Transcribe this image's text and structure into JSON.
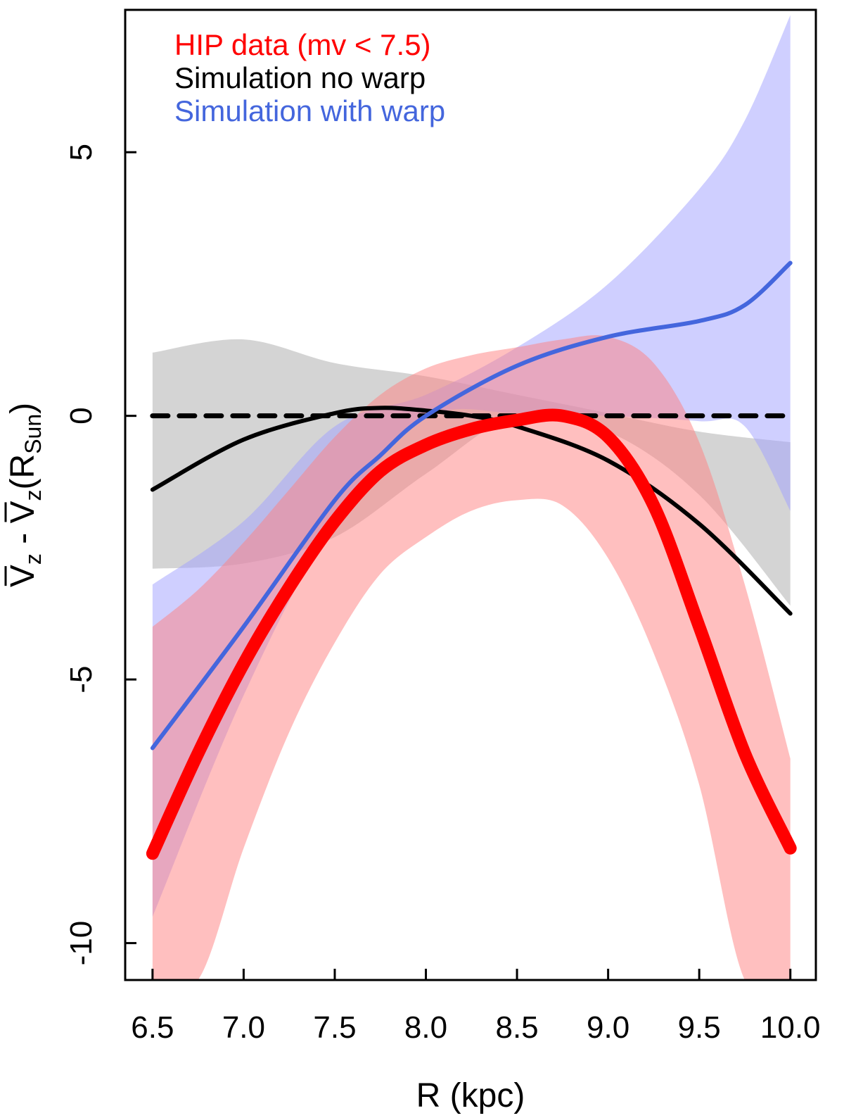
{
  "chart_data": {
    "type": "line",
    "xlabel": "R (kpc)",
    "ylabel": {
      "v1": "V",
      "sub1": "z",
      "minus": " - ",
      "v2": "V",
      "sub2": "z",
      "open": "(R",
      "sub3": "Sun",
      "close": ")"
    },
    "xlim": [
      6.35,
      10.14
    ],
    "ylim": [
      -10.7,
      7.7
    ],
    "x_ticks": [
      {
        "value": 6.5,
        "label": "6.5"
      },
      {
        "value": 7.0,
        "label": "7.0"
      },
      {
        "value": 7.5,
        "label": "7.5"
      },
      {
        "value": 8.0,
        "label": "8.0"
      },
      {
        "value": 8.5,
        "label": "8.5"
      },
      {
        "value": 9.0,
        "label": "9.0"
      },
      {
        "value": 9.5,
        "label": "9.5"
      },
      {
        "value": 10.0,
        "label": "10.0"
      }
    ],
    "y_ticks": [
      {
        "value": 5,
        "label": "5"
      },
      {
        "value": 0,
        "label": "0"
      },
      {
        "value": -5,
        "label": "-5"
      },
      {
        "value": -10,
        "label": "-10"
      }
    ],
    "legend": [
      {
        "label": "HIP data (mv < 7.5)",
        "color": "#ff0000"
      },
      {
        "label": "Simulation no warp",
        "color": "#000000"
      },
      {
        "label": "Simulation with warp",
        "color": "#4466dd"
      }
    ],
    "reference_line": {
      "y": 0,
      "style": "dashed",
      "color": "#000000"
    },
    "bands": [
      {
        "name": "no warp band",
        "color": "#aaaaaa",
        "x": [
          6.5,
          7.0,
          7.5,
          8.0,
          8.5,
          9.0,
          9.5,
          10.0
        ],
        "upper": [
          1.2,
          1.45,
          1.0,
          0.75,
          0.4,
          0.05,
          -0.3,
          -0.5
        ],
        "lower": [
          -2.9,
          -2.8,
          -2.3,
          -1.1,
          0.0,
          -0.3,
          -1.5,
          -3.6
        ]
      },
      {
        "name": "with warp band",
        "color": "#a0a0ff",
        "x": [
          6.5,
          7.0,
          7.5,
          8.0,
          8.5,
          9.0,
          9.5,
          9.75,
          10.0
        ],
        "upper": [
          -3.2,
          -2.0,
          -0.2,
          0.4,
          1.3,
          2.5,
          4.3,
          5.6,
          7.6
        ],
        "lower": [
          -9.5,
          -5.3,
          -2.0,
          -0.05,
          0.05,
          0.0,
          -0.1,
          -0.2,
          -1.8
        ]
      },
      {
        "name": "HIP data band",
        "color": "#ff8080",
        "x": [
          6.5,
          6.75,
          7.0,
          7.25,
          7.5,
          7.75,
          8.0,
          8.25,
          8.5,
          8.75,
          9.0,
          9.25,
          9.5,
          9.75,
          10.0
        ],
        "upper": [
          -4.0,
          -3.3,
          -2.4,
          -1.4,
          -0.4,
          0.4,
          0.9,
          1.15,
          1.3,
          1.45,
          1.5,
          1.0,
          -0.5,
          -3.2,
          -6.5
        ],
        "lower": [
          -10.7,
          -10.7,
          -8.2,
          -6.0,
          -4.3,
          -3.0,
          -2.3,
          -1.8,
          -1.6,
          -1.7,
          -2.7,
          -4.5,
          -7.0,
          -10.7,
          -10.7
        ]
      }
    ],
    "series": [
      {
        "name": "Simulation no warp",
        "color": "#000000",
        "x": [
          6.5,
          7.0,
          7.5,
          7.75,
          8.0,
          8.25,
          8.5,
          9.0,
          9.5,
          10.0
        ],
        "y": [
          -1.4,
          -0.45,
          0.05,
          0.15,
          0.1,
          0.0,
          -0.2,
          -0.85,
          -2.05,
          -3.75
        ]
      },
      {
        "name": "Simulation with warp",
        "color": "#4466dd",
        "x": [
          6.5,
          7.0,
          7.5,
          7.75,
          8.0,
          8.5,
          9.0,
          9.5,
          9.75,
          10.0
        ],
        "y": [
          -6.3,
          -4.0,
          -1.6,
          -0.75,
          0.0,
          0.95,
          1.5,
          1.8,
          2.1,
          2.9
        ]
      },
      {
        "name": "HIP data (mv < 7.5)",
        "color": "#ff0000",
        "x": [
          6.5,
          6.75,
          7.0,
          7.25,
          7.5,
          7.75,
          8.0,
          8.25,
          8.5,
          8.75,
          9.0,
          9.25,
          9.5,
          9.75,
          10.0
        ],
        "y": [
          -8.3,
          -6.4,
          -4.7,
          -3.25,
          -2.0,
          -1.05,
          -0.55,
          -0.25,
          -0.08,
          0.0,
          -0.4,
          -1.7,
          -4.0,
          -6.4,
          -8.2
        ]
      }
    ]
  }
}
